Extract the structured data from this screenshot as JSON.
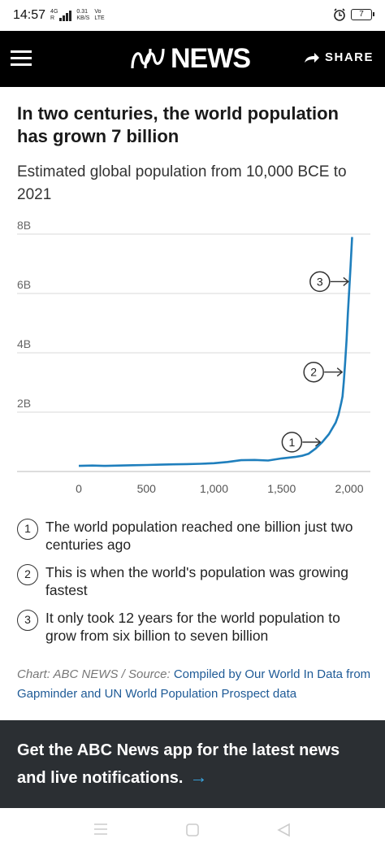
{
  "status_bar": {
    "time": "14:57",
    "network_small_1": "4G",
    "network_small_2": "R",
    "speed_value": "0.31",
    "speed_unit": "KB/S",
    "carrier_1": "Vo",
    "carrier_2": "LTE",
    "battery": "7"
  },
  "header": {
    "logo_text": "NEWS",
    "share_label": "SHARE"
  },
  "article": {
    "headline": "In two centuries, the world population has grown 7 billion",
    "subhead": "Estimated global population from 10,000 BCE to 2021"
  },
  "chart_data": {
    "type": "line",
    "title": "",
    "xlabel": "",
    "ylabel": "",
    "x_ticks": [
      "0",
      "500",
      "1,000",
      "1,500",
      "2,000"
    ],
    "y_ticks": [
      "2B",
      "4B",
      "6B",
      "8B"
    ],
    "xlim": [
      0,
      2021
    ],
    "ylim": [
      0,
      8
    ],
    "grid": true,
    "line_color": "#1f7fbd",
    "series": [
      {
        "x": [
          0,
          100,
          200,
          300,
          400,
          500,
          600,
          700,
          800,
          900,
          1000,
          1100,
          1200,
          1300,
          1400,
          1500,
          1600,
          1650,
          1700,
          1750,
          1800,
          1850,
          1900,
          1920,
          1940,
          1950,
          1960,
          1970,
          1980,
          1990,
          2000,
          2010,
          2021
        ],
        "y": [
          0.19,
          0.2,
          0.19,
          0.2,
          0.21,
          0.22,
          0.23,
          0.24,
          0.25,
          0.26,
          0.28,
          0.32,
          0.38,
          0.39,
          0.37,
          0.44,
          0.49,
          0.53,
          0.6,
          0.77,
          0.99,
          1.26,
          1.65,
          1.91,
          2.3,
          2.53,
          3.03,
          3.7,
          4.44,
          5.33,
          6.14,
          6.96,
          7.9
        ]
      }
    ],
    "annotations": [
      {
        "label": "1",
        "x": 1804,
        "y": 0.99
      },
      {
        "label": "2",
        "x": 1965,
        "y": 3.35
      },
      {
        "label": "3",
        "x": 2011,
        "y": 6.4
      }
    ]
  },
  "notes": [
    {
      "num": "1",
      "text": "The world population reached one billion just two centuries ago"
    },
    {
      "num": "2",
      "text": "This is when the world's population was growing fastest"
    },
    {
      "num": "3",
      "text": "It only took 12 years for the world population to grow from six billion to seven billion"
    }
  ],
  "credit": {
    "prefix": "Chart: ABC NEWS / Source:",
    "link": "Compiled by Our World In Data from Gapminder and UN World Population Prospect data"
  },
  "banner": {
    "text": "Get the ABC News app for the latest news and live notifications.",
    "arrow": "→"
  },
  "colors": {
    "header_bg": "#000000",
    "banner_bg": "#2b2f33",
    "accent": "#39a9e6",
    "link": "#1e5a96"
  }
}
